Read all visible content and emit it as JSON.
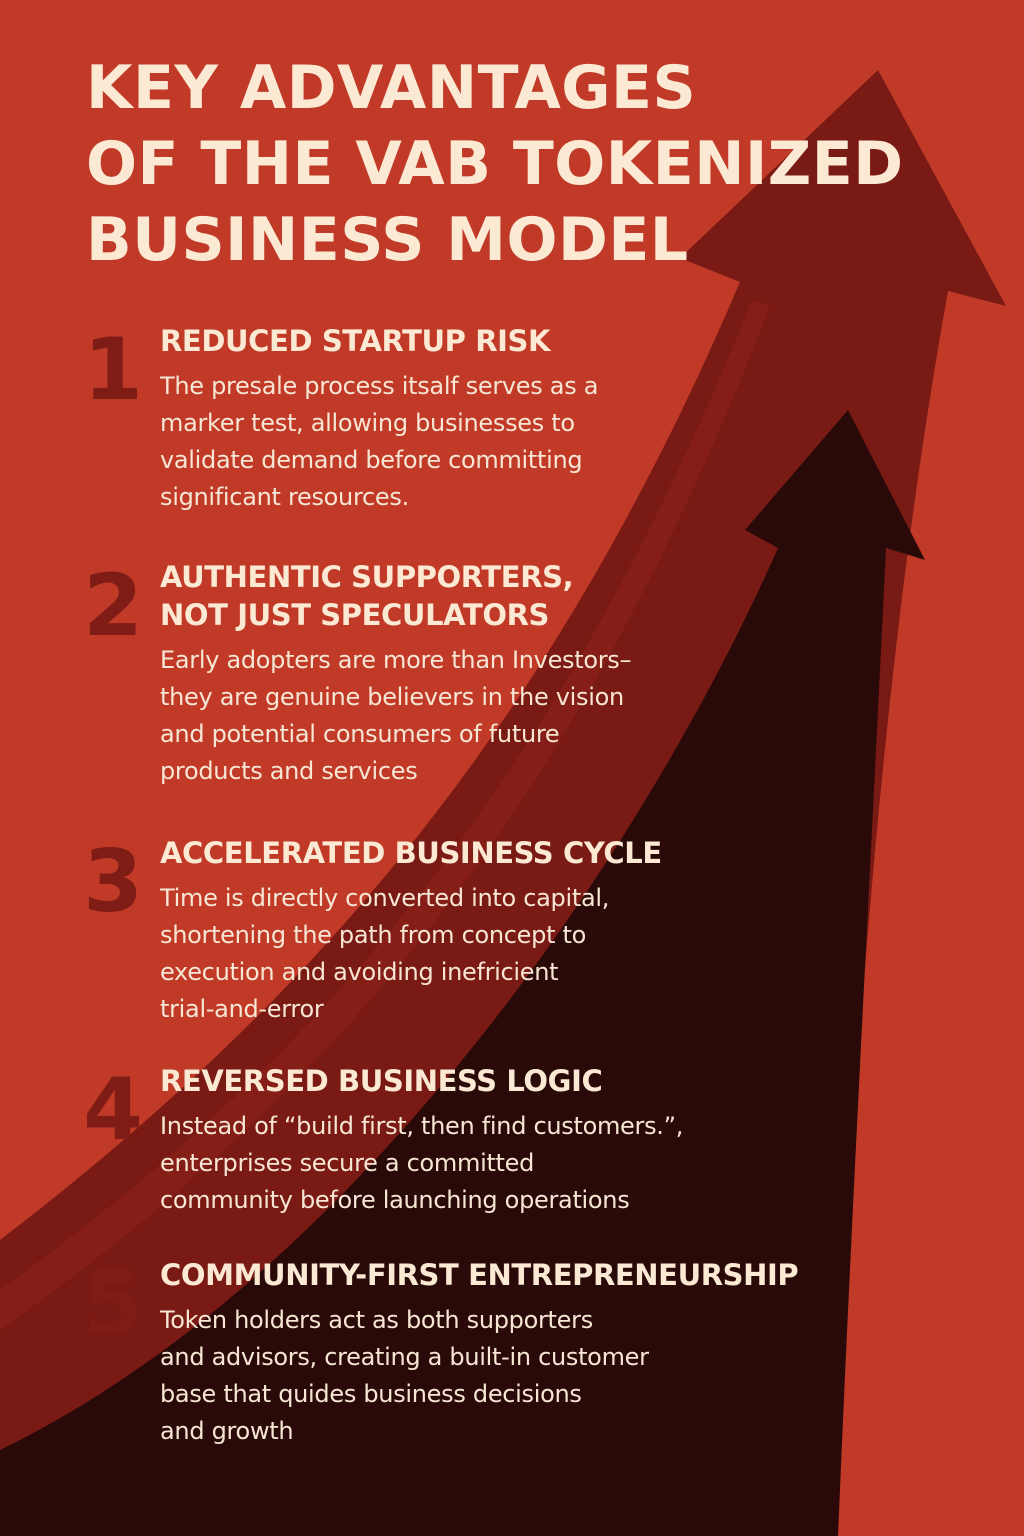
{
  "title_lines": [
    "KEY ADVANTAGES",
    "OF THE VAB TOKENIZED",
    "BUSINESS MODEL"
  ],
  "advantages": [
    {
      "number": "1",
      "heading_lines": [
        "REDUCED STARTUP RISK"
      ],
      "body_lines": [
        "The presale process itsalf serves as a",
        "marker test, allowing businesses to",
        "validate demand before committing",
        "significant resources."
      ]
    },
    {
      "number": "2",
      "heading_lines": [
        "AUTHENTIC SUPPORTERS,",
        "NOT JUST SPECULATORS"
      ],
      "body_lines": [
        "Early adopters are more than Investors–",
        "they are genuine believers in the vision",
        "and potential consumers of future",
        "products and services"
      ]
    },
    {
      "number": "3",
      "heading_lines": [
        "ACCELERATED BUSINESS CYCLE"
      ],
      "body_lines": [
        "Time is directly converted into capital,",
        "shortening the path from concept to",
        "execution and avoiding inefricient",
        "trial-and-error"
      ]
    },
    {
      "number": "4",
      "heading_lines": [
        "REVERSED BUSINESS LOGIC"
      ],
      "body_lines": [
        "Instead of “build first, then find customers.”,",
        "enterprises secure a committed",
        "community before launching operations"
      ]
    },
    {
      "number": "5",
      "heading_lines": [
        "COMMUNITY-FIRST ENTREPRENEURSHIP"
      ],
      "body_lines": [
        "Token holders act as both supporters",
        "and advisors, creating a built-in customer",
        "base that quides business decisions",
        "and growth"
      ]
    }
  ],
  "colors": {
    "background": "#c13a28",
    "arrow_mid": "#7a1a14",
    "arrow_dark": "#2a0a08",
    "title_text": "#fbe9d4",
    "number_text": "#7f1c16"
  }
}
